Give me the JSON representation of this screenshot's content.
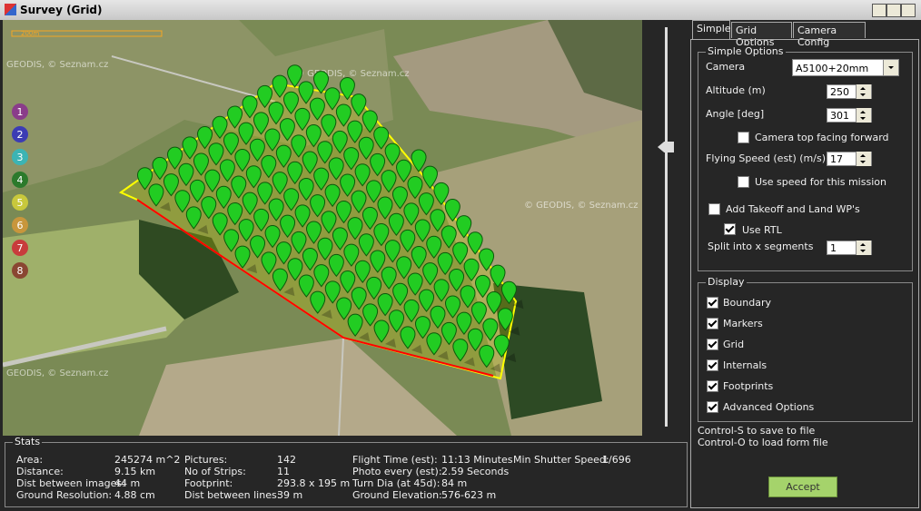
{
  "window": {
    "title": "Survey (Grid)"
  },
  "map": {
    "scale_label": "200m",
    "attributions": [
      "GEODIS, © Seznam.cz",
      "© GEODIS, © Seznam.cz",
      "© GEODIS, © Seznam.cz",
      "GEODIS, © Seznam.cz"
    ],
    "waypoint_buttons": [
      "1",
      "2",
      "3",
      "4",
      "5",
      "6",
      "7",
      "8"
    ]
  },
  "tabs": [
    "Simple",
    "Grid Options",
    "Camera Config"
  ],
  "simple_options": {
    "title": "Simple Options",
    "camera_label": "Camera",
    "camera_value": "A5100+20mm",
    "altitude_label": "Altitude (m)",
    "altitude_value": 250,
    "angle_label": "Angle [deg]",
    "angle_value": 301,
    "camera_top_forward": "Camera top facing forward",
    "speed_label": "Flying Speed (est) (m/s)",
    "speed_value": 17,
    "use_speed": "Use speed for this mission",
    "takeoff_land": "Add Takeoff and Land WP's",
    "use_rtl": "Use RTL",
    "split_label": "Split into x segments",
    "split_value": 1
  },
  "display": {
    "title": "Display",
    "options": [
      "Boundary",
      "Markers",
      "Grid",
      "Internals",
      "Footprints",
      "Advanced Options"
    ]
  },
  "hints": [
    "Control-S to save to file",
    "Control-O to load form file"
  ],
  "accept": "Accept",
  "stats": {
    "title": "Stats",
    "columns": [
      [
        [
          "Area:",
          "245274 m^2"
        ],
        [
          "Distance:",
          "9.15 km"
        ],
        [
          "Dist between images:",
          "44 m"
        ],
        [
          "Ground Resolution:",
          "4.88 cm"
        ]
      ],
      [
        [
          "Pictures:",
          "142"
        ],
        [
          "No of Strips:",
          "11"
        ],
        [
          "Footprint:",
          "293.8 x 195 m"
        ],
        [
          "Dist between lines:",
          "39 m"
        ]
      ],
      [
        [
          "Flight Time (est):",
          "11:13 Minutes"
        ],
        [
          "Photo every (est):",
          "2.59 Seconds"
        ],
        [
          "Turn Dia (at 45d):",
          "84 m"
        ],
        [
          "Ground Elevation:",
          "576-623 m"
        ]
      ],
      [
        [
          "Min Shutter Speed:",
          "1/696"
        ]
      ]
    ]
  }
}
